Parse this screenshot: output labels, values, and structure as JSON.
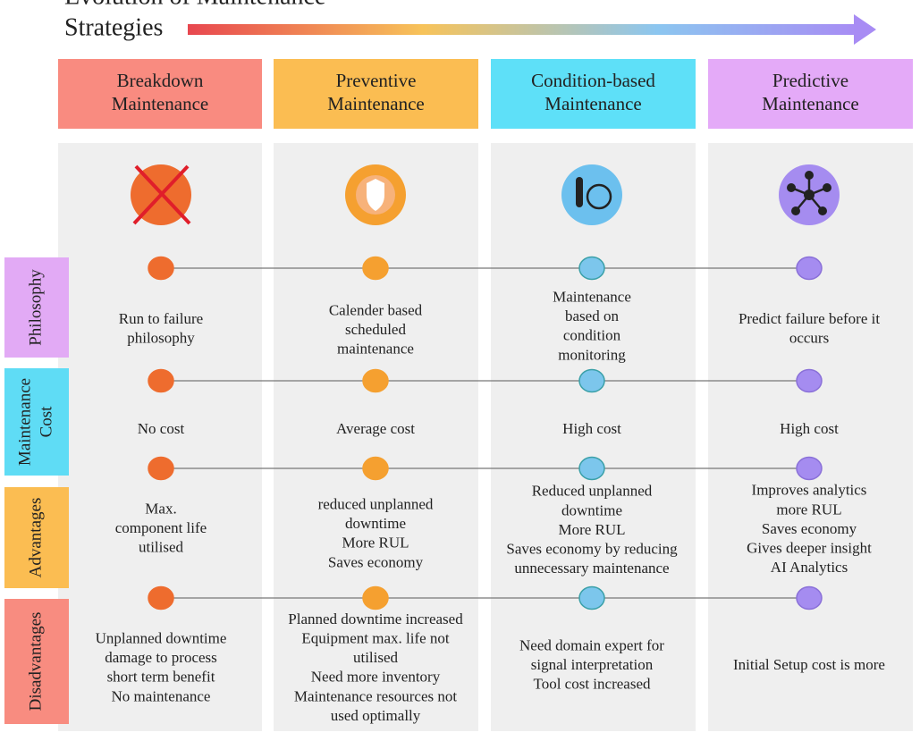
{
  "title": [
    "Evolution of Maintenance",
    "Strategies"
  ],
  "columns": [
    {
      "header": [
        "Breakdown",
        "Maintenance"
      ]
    },
    {
      "header": [
        "Preventive",
        "Maintenance"
      ]
    },
    {
      "header": [
        "Condition-based",
        "Maintenance"
      ]
    },
    {
      "header": [
        "Predictive",
        "Maintenance"
      ]
    }
  ],
  "rows": [
    {
      "label": [
        "Philosophy"
      ],
      "cells": [
        [
          "Run to failure",
          "philosophy"
        ],
        [
          "Calender based",
          "scheduled",
          "maintenance"
        ],
        [
          "Maintenance",
          "based on",
          "condition",
          "monitoring"
        ],
        [
          "Predict failure before it",
          "occurs"
        ]
      ]
    },
    {
      "label": [
        "Maintenance",
        "Cost"
      ],
      "cells": [
        [
          "No cost"
        ],
        [
          "Average cost"
        ],
        [
          "High cost"
        ],
        [
          "High cost"
        ]
      ]
    },
    {
      "label": [
        "Advantages"
      ],
      "cells": [
        [
          "Max.",
          "component life",
          "utilised"
        ],
        [
          "reduced unplanned",
          "downtime",
          "More RUL",
          "Saves economy"
        ],
        [
          "Reduced unplanned",
          "downtime",
          "More RUL",
          "Saves economy by reducing",
          "unnecessary maintenance"
        ],
        [
          "Improves analytics",
          "more RUL",
          "Saves economy",
          "Gives deeper insight",
          "AI Analytics"
        ]
      ]
    },
    {
      "label": [
        "Disadvantages"
      ],
      "cells": [
        [
          "Unplanned downtime",
          "damage to process",
          "short term benefit",
          "No maintenance"
        ],
        [
          "Planned downtime increased",
          "Equipment max. life not",
          "utilised",
          "Need more inventory",
          "Maintenance resources not",
          "used optimally"
        ],
        [
          "Need domain expert for",
          "signal interpretation",
          "Tool cost increased"
        ],
        [
          "Initial Setup cost is more"
        ]
      ]
    }
  ]
}
